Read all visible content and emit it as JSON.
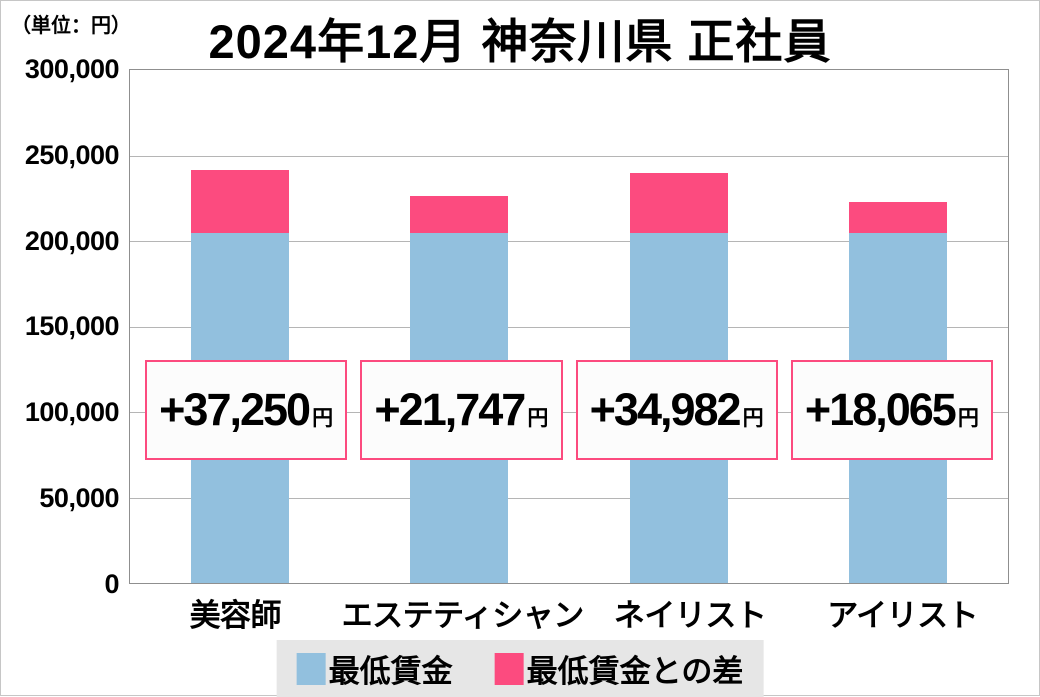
{
  "header": {
    "unit_label": "（単位：円）",
    "title": "2024年12月 神奈川県 正社員"
  },
  "y_axis": {
    "ticks": [
      "300,000",
      "250,000",
      "200,000",
      "150,000",
      "100,000",
      "50,000",
      "0"
    ]
  },
  "chart_data": {
    "type": "bar",
    "stacked": true,
    "title": "2024年12月 神奈川県 正社員",
    "unit": "円",
    "categories": [
      "美容師",
      "エステティシャン",
      "ネイリスト",
      "アイリスト"
    ],
    "series": [
      {
        "name": "最低賃金",
        "color": "#92c0de",
        "values": [
          204512,
          204512,
          204512,
          204512
        ]
      },
      {
        "name": "最低賃金との差",
        "color": "#fc4b7f",
        "values": [
          37250,
          21747,
          34982,
          18065
        ]
      }
    ],
    "totals": [
      241762,
      226259,
      239494,
      222577
    ],
    "diff_labels": [
      {
        "value": "+37,250",
        "suffix": "円"
      },
      {
        "value": "+21,747",
        "suffix": "円"
      },
      {
        "value": "+34,982",
        "suffix": "円"
      },
      {
        "value": "+18,065",
        "suffix": "円"
      }
    ],
    "xlabel": "",
    "ylabel": "",
    "ylim": [
      0,
      300000
    ],
    "y_tick_step": 50000,
    "grid": true,
    "legend_position": "bottom"
  },
  "legend": {
    "items": [
      {
        "label": "最低賃金",
        "color": "#92c0de"
      },
      {
        "label": "最低賃金との差",
        "color": "#fc4b7f"
      }
    ]
  },
  "colors": {
    "min_wage": "#92c0de",
    "diff": "#fc4b7f",
    "diff_box_border": "#fc4b7f",
    "diff_box_bg": "#fcfcfc",
    "grid": "#b5b5b5",
    "axis": "#8f8f8f",
    "legend_bg": "#e6e6e6"
  }
}
